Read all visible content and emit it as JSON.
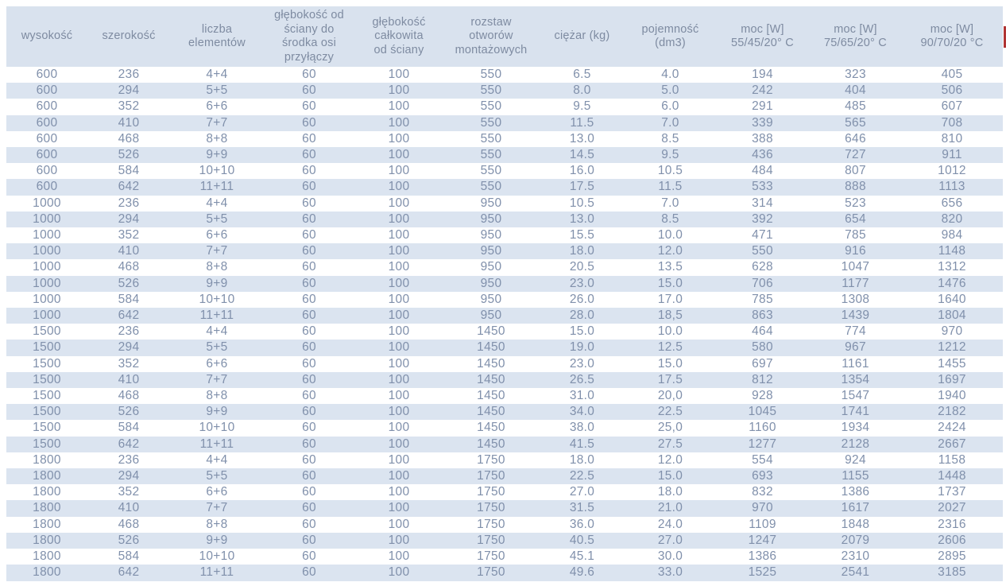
{
  "colors": {
    "header_bg": "#d9e2ee",
    "stripe_bg": "#dbe4f0",
    "header_text": "#7e8ba1",
    "cell_text": "#8090ab",
    "artifact_red": "#b03434",
    "page_bg": "#ffffff"
  },
  "chart_data": {
    "type": "table",
    "title": "",
    "layout": {
      "striping": "alternate-rows",
      "stripe_on": "even",
      "grid": "off",
      "header_rows": 1
    },
    "columns": [
      "wysokość",
      "szerokość",
      "liczba\nelementów",
      "głębokość od\nściany do\nśrodka osi\nprzyłączy",
      "głębokość\ncałkowita\nod ściany",
      "rozstaw\notworów\nmontażowych",
      "ciężar (kg)",
      "pojemność\n(dm3)",
      "moc [W]\n55/45/20° C",
      "moc [W]\n75/65/20° C",
      "moc [W]\n90/70/20 °C"
    ],
    "rows": [
      [
        "600",
        "236",
        "4+4",
        "60",
        "100",
        "550",
        "6.5",
        "4.0",
        "194",
        "323",
        "405"
      ],
      [
        "600",
        "294",
        "5+5",
        "60",
        "100",
        "550",
        "8.0",
        "5.0",
        "242",
        "404",
        "506"
      ],
      [
        "600",
        "352",
        "6+6",
        "60",
        "100",
        "550",
        "9.5",
        "6.0",
        "291",
        "485",
        "607"
      ],
      [
        "600",
        "410",
        "7+7",
        "60",
        "100",
        "550",
        "11.5",
        "7.0",
        "339",
        "565",
        "708"
      ],
      [
        "600",
        "468",
        "8+8",
        "60",
        "100",
        "550",
        "13.0",
        "8.5",
        "388",
        "646",
        "810"
      ],
      [
        "600",
        "526",
        "9+9",
        "60",
        "100",
        "550",
        "14.5",
        "9.5",
        "436",
        "727",
        "911"
      ],
      [
        "600",
        "584",
        "10+10",
        "60",
        "100",
        "550",
        "16.0",
        "10.5",
        "484",
        "807",
        "1012"
      ],
      [
        "600",
        "642",
        "11+11",
        "60",
        "100",
        "550",
        "17.5",
        "11.5",
        "533",
        "888",
        "1113"
      ],
      [
        "1000",
        "236",
        "4+4",
        "60",
        "100",
        "950",
        "10.5",
        "7.0",
        "314",
        "523",
        "656"
      ],
      [
        "1000",
        "294",
        "5+5",
        "60",
        "100",
        "950",
        "13.0",
        "8.5",
        "392",
        "654",
        "820"
      ],
      [
        "1000",
        "352",
        "6+6",
        "60",
        "100",
        "950",
        "15.5",
        "10.0",
        "471",
        "785",
        "984"
      ],
      [
        "1000",
        "410",
        "7+7",
        "60",
        "100",
        "950",
        "18.0",
        "12.0",
        "550",
        "916",
        "1148"
      ],
      [
        "1000",
        "468",
        "8+8",
        "60",
        "100",
        "950",
        "20.5",
        "13.5",
        "628",
        "1047",
        "1312"
      ],
      [
        "1000",
        "526",
        "9+9",
        "60",
        "100",
        "950",
        "23.0",
        "15.0",
        "706",
        "1177",
        "1476"
      ],
      [
        "1000",
        "584",
        "10+10",
        "60",
        "100",
        "950",
        "26.0",
        "17.0",
        "785",
        "1308",
        "1640"
      ],
      [
        "1000",
        "642",
        "11+11",
        "60",
        "100",
        "950",
        "28.0",
        "18,5",
        "863",
        "1439",
        "1804"
      ],
      [
        "1500",
        "236",
        "4+4",
        "60",
        "100",
        "1450",
        "15.0",
        "10.0",
        "464",
        "774",
        "970"
      ],
      [
        "1500",
        "294",
        "5+5",
        "60",
        "100",
        "1450",
        "19.0",
        "12.5",
        "580",
        "967",
        "1212"
      ],
      [
        "1500",
        "352",
        "6+6",
        "60",
        "100",
        "1450",
        "23.0",
        "15.0",
        "697",
        "1161",
        "1455"
      ],
      [
        "1500",
        "410",
        "7+7",
        "60",
        "100",
        "1450",
        "26.5",
        "17.5",
        "812",
        "1354",
        "1697"
      ],
      [
        "1500",
        "468",
        "8+8",
        "60",
        "100",
        "1450",
        "31.0",
        "20,0",
        "928",
        "1547",
        "1940"
      ],
      [
        "1500",
        "526",
        "9+9",
        "60",
        "100",
        "1450",
        "34.0",
        "22.5",
        "1045",
        "1741",
        "2182"
      ],
      [
        "1500",
        "584",
        "10+10",
        "60",
        "100",
        "1450",
        "38.0",
        "25,0",
        "1160",
        "1934",
        "2424"
      ],
      [
        "1500",
        "642",
        "11+11",
        "60",
        "100",
        "1450",
        "41.5",
        "27.5",
        "1277",
        "2128",
        "2667"
      ],
      [
        "1800",
        "236",
        "4+4",
        "60",
        "100",
        "1750",
        "18.0",
        "12.0",
        "554",
        "924",
        "1158"
      ],
      [
        "1800",
        "294",
        "5+5",
        "60",
        "100",
        "1750",
        "22.5",
        "15.0",
        "693",
        "1155",
        "1448"
      ],
      [
        "1800",
        "352",
        "6+6",
        "60",
        "100",
        "1750",
        "27.0",
        "18.0",
        "832",
        "1386",
        "1737"
      ],
      [
        "1800",
        "410",
        "7+7",
        "60",
        "100",
        "1750",
        "31.5",
        "21.0",
        "970",
        "1617",
        "2027"
      ],
      [
        "1800",
        "468",
        "8+8",
        "60",
        "100",
        "1750",
        "36.0",
        "24.0",
        "1109",
        "1848",
        "2316"
      ],
      [
        "1800",
        "526",
        "9+9",
        "60",
        "100",
        "1750",
        "40.5",
        "27.0",
        "1247",
        "2079",
        "2606"
      ],
      [
        "1800",
        "584",
        "10+10",
        "60",
        "100",
        "1750",
        "45.1",
        "30.0",
        "1386",
        "2310",
        "2895"
      ],
      [
        "1800",
        "642",
        "11+11",
        "60",
        "100",
        "1750",
        "49.6",
        "33.0",
        "1525",
        "2541",
        "3185"
      ]
    ]
  }
}
